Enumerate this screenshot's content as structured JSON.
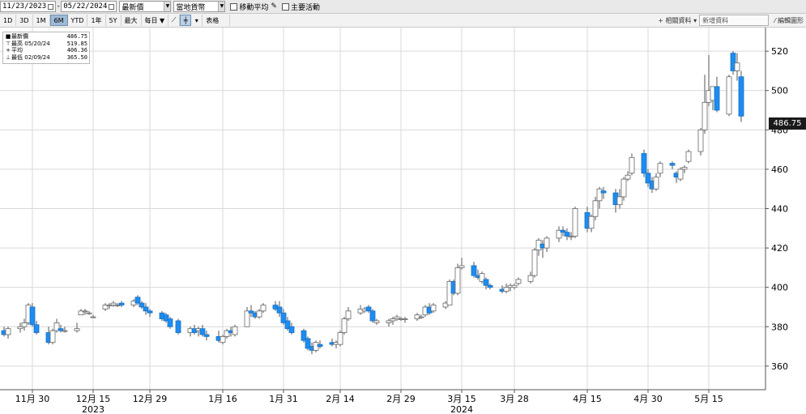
{
  "toolbar": {
    "start_date": "11/23/2023",
    "end_date": "05/22/2024",
    "price_type": "最新價",
    "currency": "當地貨幣",
    "moving_avg_label": "移動平均",
    "events_label": "主要活動",
    "ranges": [
      "1D",
      "3D",
      "1M",
      "6M",
      "YTD",
      "1年",
      "5Y",
      "最大"
    ],
    "active_range": "6M",
    "frequency": "每日",
    "table_label": "表格",
    "related_label": "相關資料",
    "news_label": "新增資料",
    "edit_label": "編輯圖形"
  },
  "legend": {
    "last": {
      "label": "最新價",
      "value": "486.75"
    },
    "high": {
      "label": "最高",
      "date": "05/20/24",
      "value": "519.85"
    },
    "avg": {
      "label": "平均",
      "value": "406.36"
    },
    "low": {
      "label": "最低",
      "date": "02/09/24",
      "value": "365.50"
    }
  },
  "last_price_badge": "486.75",
  "colors": {
    "up": "#ffffff",
    "down": "#1e8cf0",
    "grid": "#d9d9d9",
    "badge": "#1a1a1a"
  },
  "chart_data": {
    "type": "candlestick",
    "y_range": [
      348,
      532
    ],
    "y_ticks": [
      360,
      380,
      400,
      420,
      440,
      460,
      480,
      500,
      520
    ],
    "x_ticks": [
      {
        "label": "11月 30",
        "day": 7
      },
      {
        "label": "12月 15",
        "day": 22
      },
      {
        "label": "12月 29",
        "day": 36
      },
      {
        "label": "1月 16",
        "day": 54
      },
      {
        "label": "1月 31",
        "day": 69
      },
      {
        "label": "2月 14",
        "day": 83
      },
      {
        "label": "2月 29",
        "day": 98
      },
      {
        "label": "3月 15",
        "day": 113
      },
      {
        "label": "3月 28",
        "day": 126
      },
      {
        "label": "4月 15",
        "day": 144
      },
      {
        "label": "4月 30",
        "day": 159
      },
      {
        "label": "5月 15",
        "day": 174
      }
    ],
    "year_labels": [
      {
        "label": "2023",
        "day": 22
      },
      {
        "label": "2024",
        "day": 113
      }
    ],
    "day_range": [
      -1,
      188
    ],
    "candles": [
      {
        "d": 0,
        "o": 378,
        "h": 380,
        "l": 375,
        "c": 376
      },
      {
        "d": 1,
        "o": 376,
        "h": 380,
        "l": 374,
        "c": 379
      },
      {
        "d": 4,
        "o": 379,
        "h": 382,
        "l": 377,
        "c": 380
      },
      {
        "d": 5,
        "o": 380,
        "h": 384,
        "l": 378,
        "c": 382
      },
      {
        "d": 6,
        "o": 382,
        "h": 392,
        "l": 381,
        "c": 391
      },
      {
        "d": 7,
        "o": 390,
        "h": 392,
        "l": 380,
        "c": 381
      },
      {
        "d": 8,
        "o": 381,
        "h": 383,
        "l": 376,
        "c": 377
      },
      {
        "d": 11,
        "o": 377,
        "h": 380,
        "l": 371,
        "c": 372
      },
      {
        "d": 12,
        "o": 372,
        "h": 379,
        "l": 371,
        "c": 378
      },
      {
        "d": 13,
        "o": 378,
        "h": 384,
        "l": 377,
        "c": 382
      },
      {
        "d": 14,
        "o": 379,
        "h": 381,
        "l": 377,
        "c": 378
      },
      {
        "d": 15,
        "o": 378,
        "h": 380,
        "l": 377,
        "c": 378
      },
      {
        "d": 18,
        "o": 378,
        "h": 382,
        "l": 377,
        "c": 379
      },
      {
        "d": 19,
        "o": 386,
        "h": 389,
        "l": 386,
        "c": 388
      },
      {
        "d": 20,
        "o": 388,
        "h": 389,
        "l": 386,
        "c": 388
      },
      {
        "d": 21,
        "o": 387,
        "h": 388,
        "l": 386,
        "c": 387
      },
      {
        "d": 22,
        "o": 385,
        "h": 386,
        "l": 385,
        "c": 385
      },
      {
        "d": 25,
        "o": 389,
        "h": 392,
        "l": 388,
        "c": 391
      },
      {
        "d": 26,
        "o": 391,
        "h": 392,
        "l": 389,
        "c": 391
      },
      {
        "d": 27,
        "o": 391,
        "h": 393,
        "l": 390,
        "c": 392
      },
      {
        "d": 28,
        "o": 391,
        "h": 392,
        "l": 390,
        "c": 391
      },
      {
        "d": 29,
        "o": 392,
        "h": 393,
        "l": 390,
        "c": 391
      },
      {
        "d": 32,
        "o": 391,
        "h": 394,
        "l": 390,
        "c": 393
      },
      {
        "d": 33,
        "o": 395,
        "h": 396,
        "l": 391,
        "c": 392
      },
      {
        "d": 34,
        "o": 392,
        "h": 393,
        "l": 389,
        "c": 390
      },
      {
        "d": 35,
        "o": 390,
        "h": 392,
        "l": 386,
        "c": 388
      },
      {
        "d": 36,
        "o": 388,
        "h": 389,
        "l": 385,
        "c": 387
      },
      {
        "d": 39,
        "o": 387,
        "h": 388,
        "l": 383,
        "c": 384
      },
      {
        "d": 40,
        "o": 386,
        "h": 387,
        "l": 382,
        "c": 383
      },
      {
        "d": 41,
        "o": 384,
        "h": 385,
        "l": 379,
        "c": 380
      },
      {
        "d": 43,
        "o": 383,
        "h": 384,
        "l": 376,
        "c": 377
      },
      {
        "d": 46,
        "o": 377,
        "h": 380,
        "l": 375,
        "c": 379
      },
      {
        "d": 47,
        "o": 379,
        "h": 381,
        "l": 376,
        "c": 377
      },
      {
        "d": 48,
        "o": 378,
        "h": 380,
        "l": 375,
        "c": 379
      },
      {
        "d": 49,
        "o": 379,
        "h": 381,
        "l": 375,
        "c": 376
      },
      {
        "d": 50,
        "o": 376,
        "h": 378,
        "l": 373,
        "c": 375
      },
      {
        "d": 53,
        "o": 375,
        "h": 378,
        "l": 372,
        "c": 373
      },
      {
        "d": 54,
        "o": 372,
        "h": 376,
        "l": 371,
        "c": 375
      },
      {
        "d": 55,
        "o": 375,
        "h": 379,
        "l": 374,
        "c": 378
      },
      {
        "d": 56,
        "o": 378,
        "h": 380,
        "l": 375,
        "c": 377
      },
      {
        "d": 57,
        "o": 376,
        "h": 381,
        "l": 375,
        "c": 380
      },
      {
        "d": 60,
        "o": 380,
        "h": 390,
        "l": 380,
        "c": 388
      },
      {
        "d": 61,
        "o": 388,
        "h": 391,
        "l": 385,
        "c": 387
      },
      {
        "d": 62,
        "o": 387,
        "h": 388,
        "l": 384,
        "c": 385
      },
      {
        "d": 63,
        "o": 385,
        "h": 389,
        "l": 384,
        "c": 388
      },
      {
        "d": 64,
        "o": 388,
        "h": 392,
        "l": 387,
        "c": 391
      },
      {
        "d": 67,
        "o": 391,
        "h": 393,
        "l": 388,
        "c": 389
      },
      {
        "d": 68,
        "o": 390,
        "h": 393,
        "l": 385,
        "c": 387
      },
      {
        "d": 69,
        "o": 387,
        "h": 389,
        "l": 381,
        "c": 382
      },
      {
        "d": 70,
        "o": 383,
        "h": 385,
        "l": 378,
        "c": 379
      },
      {
        "d": 71,
        "o": 380,
        "h": 382,
        "l": 376,
        "c": 377
      },
      {
        "d": 74,
        "o": 378,
        "h": 379,
        "l": 372,
        "c": 373
      },
      {
        "d": 75,
        "o": 374,
        "h": 375,
        "l": 368,
        "c": 369
      },
      {
        "d": 76,
        "o": 370,
        "h": 372,
        "l": 366,
        "c": 368
      },
      {
        "d": 77,
        "o": 368,
        "h": 373,
        "l": 367,
        "c": 372
      },
      {
        "d": 78,
        "o": 371,
        "h": 373,
        "l": 369,
        "c": 370
      },
      {
        "d": 81,
        "o": 372,
        "h": 374,
        "l": 370,
        "c": 371
      },
      {
        "d": 82,
        "o": 371,
        "h": 373,
        "l": 369,
        "c": 372
      },
      {
        "d": 83,
        "o": 371,
        "h": 378,
        "l": 370,
        "c": 377
      },
      {
        "d": 84,
        "o": 377,
        "h": 385,
        "l": 376,
        "c": 384
      },
      {
        "d": 85,
        "o": 384,
        "h": 390,
        "l": 383,
        "c": 388
      },
      {
        "d": 88,
        "o": 387,
        "h": 391,
        "l": 386,
        "c": 389
      },
      {
        "d": 89,
        "o": 388,
        "h": 390,
        "l": 387,
        "c": 389
      },
      {
        "d": 90,
        "o": 390,
        "h": 391,
        "l": 387,
        "c": 388
      },
      {
        "d": 91,
        "o": 388,
        "h": 389,
        "l": 382,
        "c": 383
      },
      {
        "d": 92,
        "o": 382,
        "h": 384,
        "l": 381,
        "c": 383
      },
      {
        "d": 95,
        "o": 382,
        "h": 384,
        "l": 380,
        "c": 383
      },
      {
        "d": 96,
        "o": 383,
        "h": 385,
        "l": 381,
        "c": 384
      },
      {
        "d": 97,
        "o": 384,
        "h": 386,
        "l": 383,
        "c": 385
      },
      {
        "d": 98,
        "o": 384,
        "h": 385,
        "l": 383,
        "c": 384
      },
      {
        "d": 99,
        "o": 384,
        "h": 385,
        "l": 382,
        "c": 384
      },
      {
        "d": 102,
        "o": 384,
        "h": 387,
        "l": 383,
        "c": 386
      },
      {
        "d": 103,
        "o": 385,
        "h": 386,
        "l": 384,
        "c": 385
      },
      {
        "d": 104,
        "o": 386,
        "h": 391,
        "l": 385,
        "c": 390
      },
      {
        "d": 105,
        "o": 390,
        "h": 392,
        "l": 386,
        "c": 387
      },
      {
        "d": 106,
        "o": 388,
        "h": 392,
        "l": 387,
        "c": 391
      },
      {
        "d": 109,
        "o": 390,
        "h": 393,
        "l": 389,
        "c": 392
      },
      {
        "d": 110,
        "o": 391,
        "h": 404,
        "l": 391,
        "c": 403
      },
      {
        "d": 111,
        "o": 403,
        "h": 404,
        "l": 396,
        "c": 397
      },
      {
        "d": 112,
        "o": 397,
        "h": 412,
        "l": 396,
        "c": 410
      },
      {
        "d": 113,
        "o": 410,
        "h": 415,
        "l": 409,
        "c": 411
      },
      {
        "d": 116,
        "o": 411,
        "h": 413,
        "l": 405,
        "c": 406
      },
      {
        "d": 117,
        "o": 406,
        "h": 409,
        "l": 404,
        "c": 405
      },
      {
        "d": 118,
        "o": 403,
        "h": 408,
        "l": 402,
        "c": 407
      },
      {
        "d": 119,
        "o": 404,
        "h": 405,
        "l": 399,
        "c": 401
      },
      {
        "d": 120,
        "o": 401,
        "h": 402,
        "l": 399,
        "c": 400
      },
      {
        "d": 123,
        "o": 399,
        "h": 401,
        "l": 397,
        "c": 398
      },
      {
        "d": 124,
        "o": 398,
        "h": 402,
        "l": 397,
        "c": 400
      },
      {
        "d": 125,
        "o": 400,
        "h": 402,
        "l": 398,
        "c": 401
      },
      {
        "d": 126,
        "o": 400,
        "h": 402,
        "l": 399,
        "c": 401
      },
      {
        "d": 127,
        "o": 402,
        "h": 405,
        "l": 401,
        "c": 404
      },
      {
        "d": 130,
        "o": 403,
        "h": 408,
        "l": 402,
        "c": 406
      },
      {
        "d": 131,
        "o": 406,
        "h": 420,
        "l": 405,
        "c": 419
      },
      {
        "d": 132,
        "o": 419,
        "h": 425,
        "l": 416,
        "c": 424
      },
      {
        "d": 133,
        "o": 422,
        "h": 424,
        "l": 415,
        "c": 420
      },
      {
        "d": 134,
        "o": 420,
        "h": 426,
        "l": 418,
        "c": 425
      },
      {
        "d": 137,
        "o": 425,
        "h": 431,
        "l": 423,
        "c": 429
      },
      {
        "d": 138,
        "o": 429,
        "h": 431,
        "l": 426,
        "c": 428
      },
      {
        "d": 139,
        "o": 428,
        "h": 430,
        "l": 424,
        "c": 426
      },
      {
        "d": 140,
        "o": 426,
        "h": 428,
        "l": 424,
        "c": 426
      },
      {
        "d": 141,
        "o": 426,
        "h": 441,
        "l": 425,
        "c": 440
      },
      {
        "d": 144,
        "o": 438,
        "h": 441,
        "l": 428,
        "c": 430
      },
      {
        "d": 145,
        "o": 430,
        "h": 437,
        "l": 428,
        "c": 436
      },
      {
        "d": 146,
        "o": 436,
        "h": 446,
        "l": 434,
        "c": 444
      },
      {
        "d": 147,
        "o": 444,
        "h": 451,
        "l": 440,
        "c": 450
      },
      {
        "d": 148,
        "o": 449,
        "h": 451,
        "l": 445,
        "c": 448
      },
      {
        "d": 151,
        "o": 448,
        "h": 450,
        "l": 438,
        "c": 442
      },
      {
        "d": 152,
        "o": 442,
        "h": 450,
        "l": 440,
        "c": 446
      },
      {
        "d": 153,
        "o": 446,
        "h": 456,
        "l": 444,
        "c": 455
      },
      {
        "d": 154,
        "o": 455,
        "h": 459,
        "l": 454,
        "c": 457
      },
      {
        "d": 155,
        "o": 458,
        "h": 468,
        "l": 457,
        "c": 466
      },
      {
        "d": 158,
        "o": 468,
        "h": 470,
        "l": 456,
        "c": 458
      },
      {
        "d": 159,
        "o": 458,
        "h": 460,
        "l": 451,
        "c": 453
      },
      {
        "d": 160,
        "o": 454,
        "h": 456,
        "l": 448,
        "c": 450
      },
      {
        "d": 161,
        "o": 450,
        "h": 458,
        "l": 449,
        "c": 456
      },
      {
        "d": 162,
        "o": 458,
        "h": 464,
        "l": 456,
        "c": 463
      },
      {
        "d": 165,
        "o": 463,
        "h": 464,
        "l": 460,
        "c": 462
      },
      {
        "d": 166,
        "o": 458,
        "h": 459,
        "l": 453,
        "c": 456
      },
      {
        "d": 167,
        "o": 455,
        "h": 461,
        "l": 454,
        "c": 460
      },
      {
        "d": 168,
        "o": 460,
        "h": 462,
        "l": 458,
        "c": 461
      },
      {
        "d": 169,
        "o": 464,
        "h": 470,
        "l": 463,
        "c": 469
      },
      {
        "d": 172,
        "o": 469,
        "h": 481,
        "l": 467,
        "c": 480
      },
      {
        "d": 173,
        "o": 480,
        "h": 508,
        "l": 478,
        "c": 494
      },
      {
        "d": 174,
        "o": 494,
        "h": 518,
        "l": 492,
        "c": 500
      },
      {
        "d": 175,
        "o": 495,
        "h": 502,
        "l": 490,
        "c": 502
      },
      {
        "d": 176,
        "o": 502,
        "h": 507,
        "l": 489,
        "c": 490
      },
      {
        "d": 179,
        "o": 488,
        "h": 508,
        "l": 487,
        "c": 507
      },
      {
        "d": 180,
        "o": 519,
        "h": 520,
        "l": 508,
        "c": 510
      },
      {
        "d": 181,
        "o": 510,
        "h": 519,
        "l": 505,
        "c": 514
      },
      {
        "d": 182,
        "o": 507,
        "h": 510,
        "l": 484,
        "c": 487
      }
    ]
  }
}
